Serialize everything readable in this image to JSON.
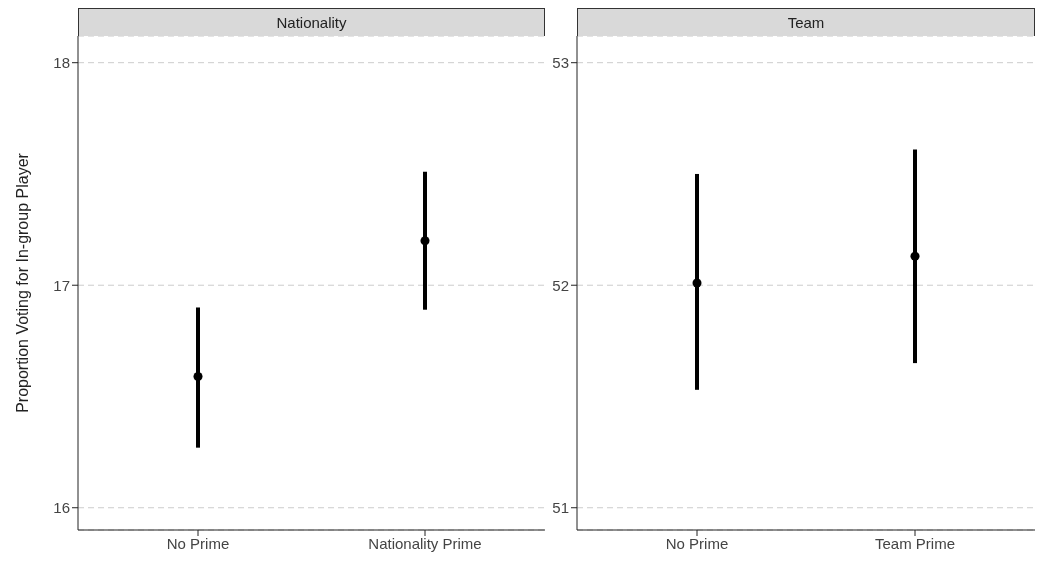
{
  "chart_data": [
    {
      "type": "scatter",
      "title": "Nationality",
      "ylabel": "Proportion Voting for In-group Player",
      "categories": [
        "No Prime",
        "Nationality Prime"
      ],
      "values": [
        16.59,
        17.2
      ],
      "errors": [
        [
          16.27,
          16.9
        ],
        [
          16.89,
          17.51
        ]
      ],
      "color": "#000000",
      "marker": "circle",
      "ylim": [
        15.9,
        18.12
      ],
      "yticks": [
        16,
        17,
        18
      ],
      "grid": "y"
    },
    {
      "type": "scatter",
      "title": "Team",
      "categories": [
        "No Prime",
        "Team Prime"
      ],
      "values": [
        52.01,
        52.13
      ],
      "errors": [
        [
          51.53,
          52.5
        ],
        [
          51.65,
          52.61
        ]
      ],
      "color": "#000000",
      "marker": "circle",
      "ylim": [
        50.9,
        53.12
      ],
      "yticks": [
        51,
        52,
        53
      ],
      "grid": "y"
    }
  ]
}
